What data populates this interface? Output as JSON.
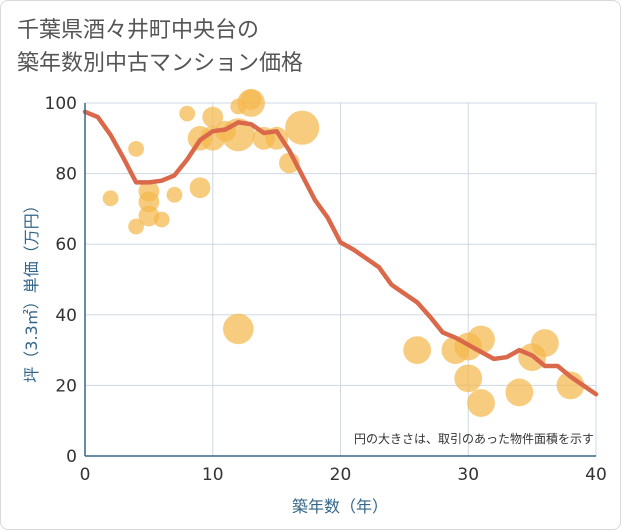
{
  "title": {
    "line1": "千葉県酒々井町中央台の",
    "line2": "築年数別中古マンション価格"
  },
  "chart_data": {
    "type": "scatter",
    "xlabel": "築年数（年）",
    "ylabel": "坪（3.3㎡）単価（万円）",
    "xlim": [
      0,
      40
    ],
    "ylim": [
      0,
      100
    ],
    "xticks": [
      0,
      10,
      20,
      30,
      40
    ],
    "yticks": [
      0,
      20,
      40,
      60,
      80,
      100
    ],
    "grid": true,
    "note": "円の大きさは、取引のあった物件面積を示す",
    "colors": {
      "bubble": "#f5b84e",
      "line": "#d9694a",
      "grid": "#cdd8e3",
      "axis": "#336688"
    },
    "points": [
      {
        "x": 2,
        "y": 73,
        "size": 2
      },
      {
        "x": 4,
        "y": 87,
        "size": 2
      },
      {
        "x": 4,
        "y": 65,
        "size": 2
      },
      {
        "x": 5,
        "y": 75,
        "size": 4
      },
      {
        "x": 5,
        "y": 72,
        "size": 4
      },
      {
        "x": 5,
        "y": 68,
        "size": 4
      },
      {
        "x": 6,
        "y": 67,
        "size": 2
      },
      {
        "x": 7,
        "y": 74,
        "size": 2
      },
      {
        "x": 8,
        "y": 97,
        "size": 2
      },
      {
        "x": 9,
        "y": 90,
        "size": 6
      },
      {
        "x": 9,
        "y": 76,
        "size": 4
      },
      {
        "x": 10,
        "y": 96,
        "size": 4
      },
      {
        "x": 10,
        "y": 90,
        "size": 6
      },
      {
        "x": 11,
        "y": 92,
        "size": 4
      },
      {
        "x": 12,
        "y": 91,
        "size": 12
      },
      {
        "x": 12,
        "y": 36,
        "size": 10
      },
      {
        "x": 12,
        "y": 99,
        "size": 2
      },
      {
        "x": 13,
        "y": 100,
        "size": 8
      },
      {
        "x": 13,
        "y": 101,
        "size": 4
      },
      {
        "x": 14,
        "y": 90,
        "size": 5
      },
      {
        "x": 15,
        "y": 90,
        "size": 5
      },
      {
        "x": 16,
        "y": 83,
        "size": 4
      },
      {
        "x": 17,
        "y": 93,
        "size": 13
      },
      {
        "x": 26,
        "y": 30,
        "size": 8
      },
      {
        "x": 29,
        "y": 30,
        "size": 8
      },
      {
        "x": 30,
        "y": 22,
        "size": 8
      },
      {
        "x": 30,
        "y": 31,
        "size": 8
      },
      {
        "x": 31,
        "y": 15,
        "size": 8
      },
      {
        "x": 31,
        "y": 33,
        "size": 8
      },
      {
        "x": 34,
        "y": 18,
        "size": 8
      },
      {
        "x": 35,
        "y": 28,
        "size": 8
      },
      {
        "x": 36,
        "y": 32,
        "size": 8
      },
      {
        "x": 38,
        "y": 20,
        "size": 8
      }
    ],
    "trend": {
      "x": [
        0,
        1,
        2,
        3,
        4,
        5,
        6,
        7,
        8,
        9,
        10,
        11,
        12,
        13,
        14,
        15,
        16,
        17,
        18,
        19,
        20,
        21,
        22,
        23,
        24,
        25,
        26,
        27,
        28,
        29,
        30,
        31,
        32,
        33,
        34,
        35,
        36,
        37,
        38,
        39,
        40
      ],
      "y": [
        97.5,
        96,
        91,
        84.5,
        77.5,
        77.5,
        78,
        79.5,
        84,
        89.5,
        92,
        92.5,
        94.5,
        94,
        91.5,
        92,
        86.5,
        79.5,
        72.5,
        67.5,
        60.5,
        58.5,
        56,
        53.5,
        48.5,
        46,
        43.5,
        39.5,
        35,
        33.5,
        31.5,
        29.5,
        27.5,
        28,
        30,
        28.5,
        25.5,
        25.5,
        22.5,
        20,
        17.5
      ]
    }
  }
}
